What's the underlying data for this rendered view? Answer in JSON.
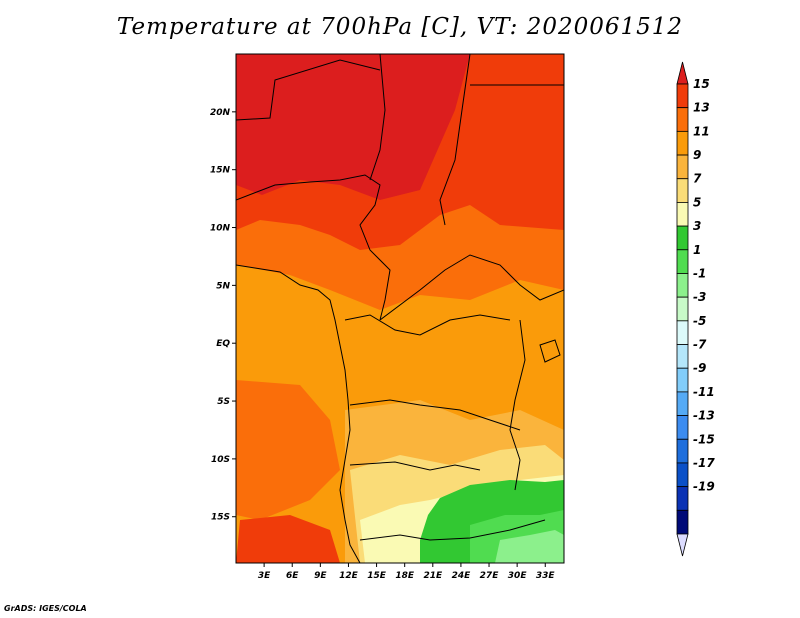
{
  "title": "Temperature at 700hPa [C], VT: 2020061512",
  "credit": "GrADS: IGES/COLA",
  "map": {
    "region": "Central and Southern Africa",
    "lon_range": [
      0,
      35
    ],
    "lat_range": [
      -19,
      25
    ],
    "lat_ticks": [
      {
        "value": 20,
        "label": "20N"
      },
      {
        "value": 15,
        "label": "15N"
      },
      {
        "value": 10,
        "label": "10N"
      },
      {
        "value": 5,
        "label": "5N"
      },
      {
        "value": 0,
        "label": "EQ"
      },
      {
        "value": -5,
        "label": "5S"
      },
      {
        "value": -10,
        "label": "10S"
      },
      {
        "value": -15,
        "label": "15S"
      }
    ],
    "lon_ticks": [
      {
        "value": 3,
        "label": "3E"
      },
      {
        "value": 6,
        "label": "6E"
      },
      {
        "value": 9,
        "label": "9E"
      },
      {
        "value": 12,
        "label": "12E"
      },
      {
        "value": 15,
        "label": "15E"
      },
      {
        "value": 18,
        "label": "18E"
      },
      {
        "value": 21,
        "label": "21E"
      },
      {
        "value": 24,
        "label": "24E"
      },
      {
        "value": 27,
        "label": "27E"
      },
      {
        "value": 30,
        "label": "30E"
      },
      {
        "value": 33,
        "label": "33E"
      }
    ]
  },
  "colorbar": {
    "labels": [
      "15",
      "13",
      "11",
      "9",
      "7",
      "5",
      "3",
      "1",
      "-1",
      "-3",
      "-5",
      "-7",
      "-9",
      "-11",
      "-13",
      "-15",
      "-17",
      "-19"
    ],
    "colors": [
      "#dc1e1e",
      "#f03c0a",
      "#fa6e0a",
      "#fa9b0a",
      "#fab43c",
      "#fadc78",
      "#fafab4",
      "#32c832",
      "#50dc50",
      "#8cf08c",
      "#c8fac8",
      "#dcfafa",
      "#b4e6fa",
      "#82cdfa",
      "#55aaf5",
      "#3c8cf0",
      "#1e6edc",
      "#0a50c8",
      "#0a32b4",
      "#000a78",
      "#dcdcff"
    ]
  }
}
